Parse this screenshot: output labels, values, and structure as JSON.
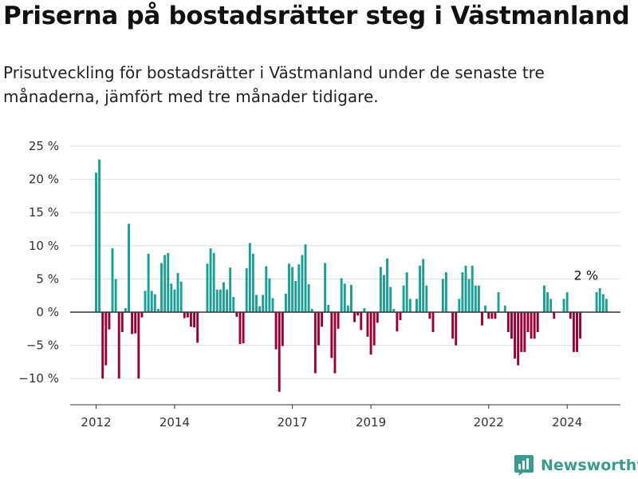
{
  "title": "Priserna på bostadsrätter steg i Västmanland",
  "subtitle": "Prisutveckling för bostadsrätter i Västmanland under de senaste tre månaderna, jämfört med tre månader tidigare.",
  "brand": {
    "name": "Newsworthy",
    "icon": "newsworthy-logo-icon"
  },
  "colors": {
    "positive": "#1a9e95",
    "negative": "#990033",
    "grid": "#dddddd",
    "baseline": "#333333"
  },
  "chart_data": {
    "type": "bar",
    "title": "Priserna på bostadsrätter steg i Västmanland",
    "xlabel": "",
    "ylabel": "",
    "ylim": [
      -13.5,
      26
    ],
    "yticks": [
      25,
      20,
      15,
      10,
      5,
      0,
      -5,
      -10
    ],
    "ytick_labels": [
      "25 %",
      "20 %",
      "15 %",
      "10 %",
      "5 %",
      "0 %",
      "−5 %",
      "−10 %"
    ],
    "x_start": "2012-01",
    "x_end": "2024-09",
    "xticks": [
      "2012",
      "2014",
      "2017",
      "2019",
      "2022",
      "2024"
    ],
    "xtick_positions": [
      "2012-01",
      "2014-01",
      "2017-01",
      "2019-01",
      "2022-01",
      "2024-01"
    ],
    "annotation": {
      "label": "2 %",
      "at": "2024-07"
    },
    "grid": true,
    "legend": "none",
    "values": [
      21,
      23,
      -10,
      -8,
      -2.6,
      9.6,
      5,
      -10,
      -3,
      0.6,
      13.3,
      -3.3,
      -3.2,
      -10,
      -0.8,
      3.2,
      8.8,
      3.2,
      2.7,
      0.5,
      7.4,
      8.6,
      8.9,
      4.3,
      3.4,
      5.9,
      4.6,
      -0.9,
      -0.8,
      -2.2,
      -2.3,
      -4.6,
      0,
      0,
      7.3,
      9.6,
      8.9,
      3.4,
      3.4,
      4.5,
      3.4,
      6.7,
      2.3,
      -0.7,
      -4.8,
      -4.7,
      6.6,
      10.4,
      8.8,
      2.6,
      0.9,
      2.6,
      6.9,
      5.1,
      2.1,
      -5.6,
      -12,
      -5.1,
      2.8,
      7.3,
      6.8,
      4.7,
      7.2,
      8.6,
      10.2,
      4.2,
      0.5,
      -9.2,
      -5,
      -2.2,
      7.4,
      1.1,
      -6.9,
      -9.2,
      -2.5,
      5.1,
      4.3,
      1,
      4.1,
      -1.5,
      -0.5,
      -2.7,
      0.6,
      -3.7,
      -6.4,
      -5,
      -1.6,
      6.8,
      5.6,
      8.1,
      3.8,
      0.5,
      -2.9,
      -1.2,
      4,
      6,
      2,
      0,
      2,
      7,
      8,
      4,
      -1,
      -3,
      0,
      0,
      5,
      6,
      0,
      -4,
      -5,
      2,
      6,
      7,
      5,
      7,
      4,
      4,
      -2,
      1,
      -1,
      -1,
      -1,
      3,
      0,
      1,
      -3,
      -4,
      -7,
      -8,
      -6,
      -6,
      -3,
      -4,
      -4,
      -3,
      0,
      4,
      3,
      2,
      -1,
      0,
      0,
      2,
      3,
      -1,
      -6,
      -6,
      -4,
      0,
      0,
      0,
      0,
      3,
      3.6,
      2.7,
      2
    ]
  }
}
